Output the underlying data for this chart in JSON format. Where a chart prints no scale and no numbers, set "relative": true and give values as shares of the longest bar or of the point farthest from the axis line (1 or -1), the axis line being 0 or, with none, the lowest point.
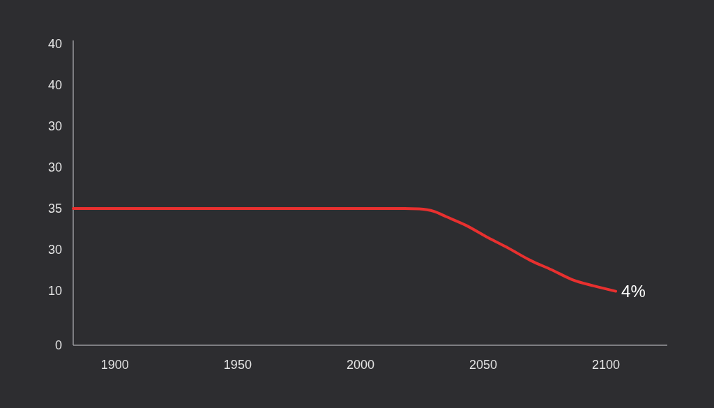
{
  "chart_data": {
    "type": "line",
    "relative": true,
    "x": [
      1883,
      1900,
      1950,
      2000,
      2018,
      2024,
      2030,
      2035,
      2043,
      2052,
      2060,
      2069,
      2078,
      2086,
      2095,
      2104
    ],
    "series": [
      {
        "color": "#e8302f",
        "values": [
          1,
          1,
          1,
          1,
          1,
          0.997,
          0.979,
          0.94,
          0.877,
          0.787,
          0.713,
          0.623,
          0.551,
          0.482,
          0.434,
          0.395
        ]
      }
    ],
    "xlim": [
      1883,
      2125
    ],
    "xticks": [
      1900,
      1950,
      2000,
      2050,
      2100
    ],
    "marker": "none",
    "line_style": "solid",
    "annotations": [
      "40",
      "40",
      "30",
      "30",
      "35",
      "30",
      "10",
      "0",
      {
        "text": "4%",
        "x": 2104,
        "y": 0.395
      }
    ]
  }
}
